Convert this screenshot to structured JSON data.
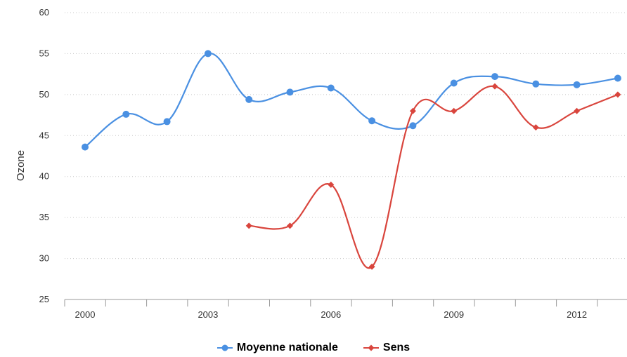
{
  "chart_data": {
    "type": "line",
    "ylabel": "Ozone",
    "ylim": [
      25,
      60
    ],
    "y_ticks": [
      25,
      30,
      35,
      40,
      45,
      50,
      55,
      60
    ],
    "x": [
      2000,
      2001,
      2002,
      2003,
      2004,
      2005,
      2006,
      2007,
      2008,
      2009,
      2010,
      2011,
      2012,
      2013
    ],
    "x_tick_labels": [
      "2000",
      "2003",
      "2006",
      "2009",
      "2012"
    ],
    "grid": true,
    "legend_position": "bottom-center",
    "series": [
      {
        "name": "Moyenne nationale",
        "color": "#4a90e2",
        "marker": "circle",
        "values": [
          43.6,
          47.6,
          46.7,
          55.0,
          49.4,
          50.3,
          50.8,
          46.8,
          46.2,
          51.4,
          52.2,
          51.3,
          51.2,
          52.0
        ]
      },
      {
        "name": "Sens",
        "color": "#d9453d",
        "marker": "diamond",
        "values": [
          null,
          null,
          null,
          null,
          34,
          34,
          39,
          29,
          48,
          48,
          51,
          46,
          48,
          50
        ]
      }
    ]
  }
}
